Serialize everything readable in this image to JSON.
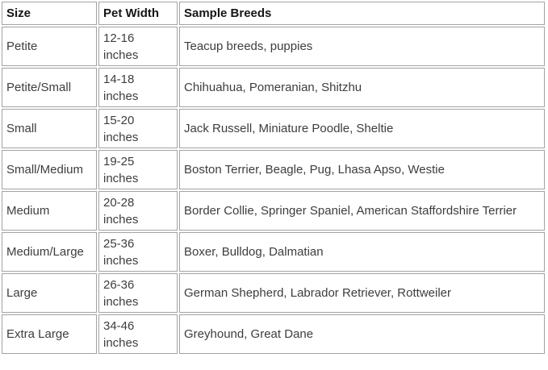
{
  "table": {
    "columns": [
      {
        "label": "Size"
      },
      {
        "label": "Pet Width"
      },
      {
        "label": "Sample Breeds"
      }
    ],
    "rows": [
      {
        "size": "Petite",
        "width": "12-16\ninches",
        "breeds": "Teacup breeds, puppies"
      },
      {
        "size": "Petite/Small",
        "width": "14-18\ninches",
        "breeds": "Chihuahua, Pomeranian, Shitzhu"
      },
      {
        "size": "Small",
        "width": "15-20\ninches",
        "breeds": "Jack Russell, Miniature Poodle, Sheltie"
      },
      {
        "size": "Small/Medium",
        "width": "19-25\ninches",
        "breeds": "Boston Terrier, Beagle, Pug, Lhasa Apso, Westie"
      },
      {
        "size": "Medium",
        "width": "20-28\ninches",
        "breeds": "Border Collie, Springer Spaniel, American Staffordshire Terrier"
      },
      {
        "size": "Medium/Large",
        "width": "25-36\ninches",
        "breeds": "Boxer, Bulldog, Dalmatian"
      },
      {
        "size": "Large",
        "width": "26-36\ninches",
        "breeds": "German Shepherd, Labrador Retriever, Rottweiler"
      },
      {
        "size": "Extra Large",
        "width": "34-46\ninches",
        "breeds": "Greyhound, Great Dane"
      }
    ]
  },
  "colors": {
    "border": "#a3a3a3",
    "header_text": "#161616",
    "body_text": "#3d3d3d",
    "background": "#ffffff"
  }
}
